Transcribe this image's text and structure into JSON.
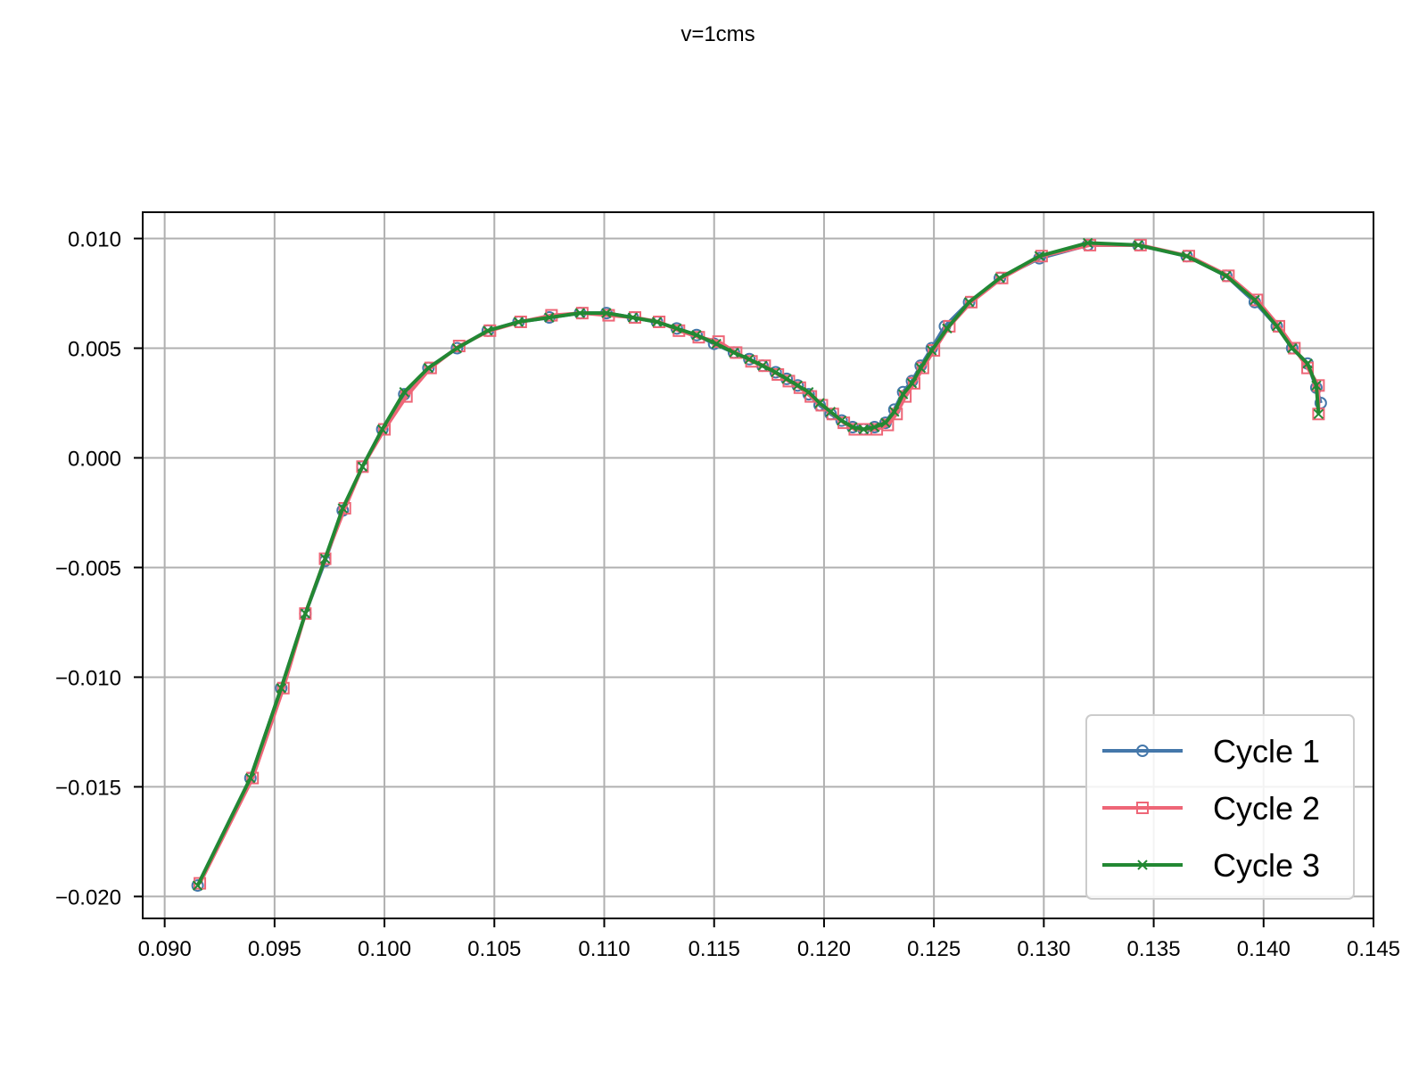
{
  "chart_data": {
    "type": "line",
    "title": "v=1cms",
    "xlabel": "",
    "ylabel": "",
    "xlim": [
      0.089,
      0.145
    ],
    "ylim": [
      -0.021,
      0.0112
    ],
    "x_ticks": [
      "0.090",
      "0.095",
      "0.100",
      "0.105",
      "0.110",
      "0.115",
      "0.120",
      "0.125",
      "0.130",
      "0.135",
      "0.140",
      "0.145"
    ],
    "y_ticks": [
      "0.010",
      "0.005",
      "0.000",
      "−0.005",
      "−0.010",
      "−0.015",
      "−0.020"
    ],
    "grid": true,
    "legend_position": "lower-right",
    "series": [
      {
        "name": "Cycle 1",
        "color": "#4477aa",
        "marker": "circle",
        "points": [
          [
            0.0915,
            -0.0195
          ],
          [
            0.0939,
            -0.0146
          ],
          [
            0.0953,
            -0.0105
          ],
          [
            0.0964,
            -0.0071
          ],
          [
            0.0973,
            -0.0047
          ],
          [
            0.0981,
            -0.0024
          ],
          [
            0.099,
            -0.0004
          ],
          [
            0.0999,
            0.0013
          ],
          [
            0.1009,
            0.0029
          ],
          [
            0.102,
            0.0041
          ],
          [
            0.1033,
            0.005
          ],
          [
            0.1047,
            0.0058
          ],
          [
            0.1061,
            0.0062
          ],
          [
            0.1075,
            0.0064
          ],
          [
            0.1089,
            0.0066
          ],
          [
            0.1101,
            0.0066
          ],
          [
            0.1113,
            0.0064
          ],
          [
            0.1124,
            0.0062
          ],
          [
            0.1133,
            0.0059
          ],
          [
            0.1142,
            0.0056
          ],
          [
            0.115,
            0.0052
          ],
          [
            0.1159,
            0.0048
          ],
          [
            0.1166,
            0.0045
          ],
          [
            0.1172,
            0.0042
          ],
          [
            0.1178,
            0.0039
          ],
          [
            0.1183,
            0.0036
          ],
          [
            0.1188,
            0.0033
          ],
          [
            0.1193,
            0.0029
          ],
          [
            0.1198,
            0.0024
          ],
          [
            0.1203,
            0.002
          ],
          [
            0.1208,
            0.0017
          ],
          [
            0.1213,
            0.0014
          ],
          [
            0.1218,
            0.0013
          ],
          [
            0.1223,
            0.0014
          ],
          [
            0.1228,
            0.0016
          ],
          [
            0.1232,
            0.0022
          ],
          [
            0.1236,
            0.003
          ],
          [
            0.124,
            0.0035
          ],
          [
            0.1244,
            0.0042
          ],
          [
            0.1249,
            0.005
          ],
          [
            0.1255,
            0.006
          ],
          [
            0.1266,
            0.0071
          ],
          [
            0.128,
            0.0082
          ],
          [
            0.1298,
            0.0091
          ],
          [
            0.132,
            0.0097
          ],
          [
            0.1343,
            0.0097
          ],
          [
            0.1365,
            0.0092
          ],
          [
            0.1383,
            0.0083
          ],
          [
            0.1396,
            0.0071
          ],
          [
            0.1406,
            0.006
          ],
          [
            0.1413,
            0.005
          ],
          [
            0.142,
            0.0043
          ],
          [
            0.1424,
            0.0032
          ],
          [
            0.1426,
            0.0025
          ]
        ]
      },
      {
        "name": "Cycle 2",
        "color": "#ee6677",
        "marker": "square",
        "points": [
          [
            0.0916,
            -0.0194
          ],
          [
            0.094,
            -0.0146
          ],
          [
            0.0954,
            -0.0105
          ],
          [
            0.0964,
            -0.0071
          ],
          [
            0.0973,
            -0.0046
          ],
          [
            0.0982,
            -0.0023
          ],
          [
            0.099,
            -0.0004
          ],
          [
            0.1,
            0.0013
          ],
          [
            0.101,
            0.0028
          ],
          [
            0.1021,
            0.0041
          ],
          [
            0.1034,
            0.0051
          ],
          [
            0.1048,
            0.0058
          ],
          [
            0.1062,
            0.0062
          ],
          [
            0.1076,
            0.0065
          ],
          [
            0.109,
            0.0066
          ],
          [
            0.1102,
            0.0065
          ],
          [
            0.1114,
            0.0064
          ],
          [
            0.1125,
            0.0062
          ],
          [
            0.1134,
            0.0058
          ],
          [
            0.1143,
            0.0055
          ],
          [
            0.1152,
            0.0053
          ],
          [
            0.116,
            0.0048
          ],
          [
            0.1167,
            0.0044
          ],
          [
            0.1173,
            0.0042
          ],
          [
            0.1179,
            0.0038
          ],
          [
            0.1184,
            0.0035
          ],
          [
            0.1189,
            0.0032
          ],
          [
            0.1194,
            0.0028
          ],
          [
            0.1199,
            0.0024
          ],
          [
            0.1204,
            0.002
          ],
          [
            0.1209,
            0.0016
          ],
          [
            0.1214,
            0.0013
          ],
          [
            0.1219,
            0.0013
          ],
          [
            0.1224,
            0.0013
          ],
          [
            0.1229,
            0.0015
          ],
          [
            0.1233,
            0.002
          ],
          [
            0.1237,
            0.0028
          ],
          [
            0.1241,
            0.0034
          ],
          [
            0.1245,
            0.0041
          ],
          [
            0.125,
            0.0049
          ],
          [
            0.1257,
            0.006
          ],
          [
            0.1267,
            0.0071
          ],
          [
            0.1281,
            0.0082
          ],
          [
            0.1299,
            0.0092
          ],
          [
            0.1321,
            0.0097
          ],
          [
            0.1344,
            0.0097
          ],
          [
            0.1366,
            0.0092
          ],
          [
            0.1384,
            0.0083
          ],
          [
            0.1397,
            0.0072
          ],
          [
            0.1407,
            0.006
          ],
          [
            0.1414,
            0.005
          ],
          [
            0.142,
            0.0041
          ],
          [
            0.1425,
            0.0033
          ],
          [
            0.1425,
            0.002
          ]
        ]
      },
      {
        "name": "Cycle 3",
        "color": "#228833",
        "marker": "x",
        "points": [
          [
            0.0915,
            -0.0195
          ],
          [
            0.0939,
            -0.0146
          ],
          [
            0.0953,
            -0.0105
          ],
          [
            0.0964,
            -0.0071
          ],
          [
            0.0973,
            -0.0046
          ],
          [
            0.0981,
            -0.0023
          ],
          [
            0.099,
            -0.0004
          ],
          [
            0.0999,
            0.0013
          ],
          [
            0.1009,
            0.003
          ],
          [
            0.102,
            0.0041
          ],
          [
            0.1033,
            0.005
          ],
          [
            0.1047,
            0.0058
          ],
          [
            0.1061,
            0.0062
          ],
          [
            0.1075,
            0.0064
          ],
          [
            0.1089,
            0.0066
          ],
          [
            0.1101,
            0.0066
          ],
          [
            0.1113,
            0.0064
          ],
          [
            0.1124,
            0.0062
          ],
          [
            0.1133,
            0.0059
          ],
          [
            0.1142,
            0.0056
          ],
          [
            0.1151,
            0.0052
          ],
          [
            0.1159,
            0.0048
          ],
          [
            0.1166,
            0.0045
          ],
          [
            0.1172,
            0.0042
          ],
          [
            0.1178,
            0.0039
          ],
          [
            0.1183,
            0.0036
          ],
          [
            0.1188,
            0.0033
          ],
          [
            0.1193,
            0.003
          ],
          [
            0.1198,
            0.0025
          ],
          [
            0.1203,
            0.0021
          ],
          [
            0.1208,
            0.0017
          ],
          [
            0.1213,
            0.0014
          ],
          [
            0.1218,
            0.0013
          ],
          [
            0.1223,
            0.0014
          ],
          [
            0.1228,
            0.0016
          ],
          [
            0.1232,
            0.0021
          ],
          [
            0.1236,
            0.0029
          ],
          [
            0.124,
            0.0034
          ],
          [
            0.1244,
            0.0041
          ],
          [
            0.1249,
            0.0049
          ],
          [
            0.1256,
            0.0059
          ],
          [
            0.1266,
            0.0071
          ],
          [
            0.128,
            0.0082
          ],
          [
            0.1298,
            0.0092
          ],
          [
            0.132,
            0.0098
          ],
          [
            0.1343,
            0.0097
          ],
          [
            0.1365,
            0.0092
          ],
          [
            0.1383,
            0.0083
          ],
          [
            0.1396,
            0.0072
          ],
          [
            0.1406,
            0.006
          ],
          [
            0.1413,
            0.005
          ],
          [
            0.142,
            0.0043
          ],
          [
            0.1424,
            0.0033
          ],
          [
            0.1425,
            0.002
          ]
        ]
      }
    ]
  }
}
